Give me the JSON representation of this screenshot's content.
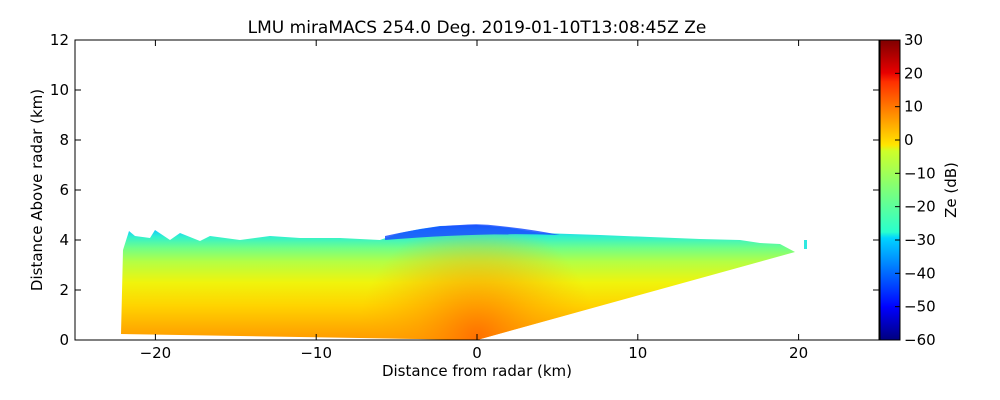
{
  "chart_data": {
    "type": "heatmap",
    "title": "LMU miraMACS 254.0 Deg. 2019-01-10T13:08:45Z  Ze",
    "xlabel": "Distance from radar (km)",
    "ylabel": "Distance Above radar  (km)",
    "xlim": [
      -25,
      25
    ],
    "ylim": [
      0,
      12
    ],
    "x_ticks": [
      -20,
      -10,
      0,
      10,
      20
    ],
    "x_tick_labels": [
      "−20",
      "−10",
      "0",
      "10",
      "20"
    ],
    "y_ticks": [
      0,
      2,
      4,
      6,
      8,
      10,
      12
    ],
    "y_tick_labels": [
      "0",
      "2",
      "4",
      "6",
      "8",
      "10",
      "12"
    ],
    "colorbar": {
      "label": "Ze (dB)",
      "range": [
        -60,
        30
      ],
      "ticks": [
        30,
        20,
        10,
        0,
        -10,
        -20,
        -30,
        -40,
        -50,
        -60
      ],
      "tick_labels": [
        "30",
        "20",
        "10",
        "0",
        "−10",
        "−20",
        "−30",
        "−40",
        "−50",
        "−60"
      ],
      "colormap": "jet"
    },
    "echo_region": {
      "description_points_km": [
        [
          -22,
          0.3
        ],
        [
          -21.8,
          4.3
        ],
        [
          -5,
          4.1
        ],
        [
          0,
          4.55
        ],
        [
          5,
          4.25
        ],
        [
          20,
          3.5
        ],
        [
          0,
          0
        ],
        [
          -22,
          0.3
        ]
      ],
      "ze_near_ground_dB": 5,
      "ze_mid_height_dB": -8,
      "ze_cloud_top_dB": -28,
      "ze_top_center_dB": -42
    },
    "grid": false
  }
}
